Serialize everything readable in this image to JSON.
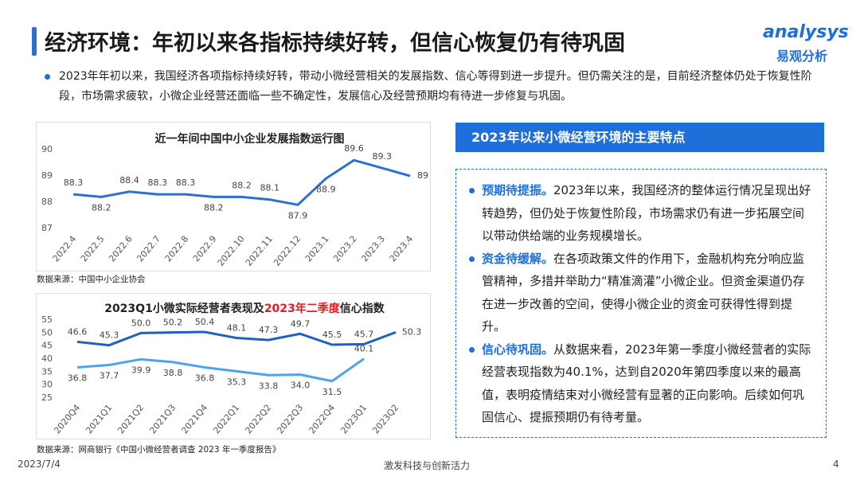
{
  "header": {
    "title": "经济环境：年初以来各指标持续好转，但信心恢复仍有待巩固",
    "logo_en": "analysys",
    "logo_cn": "易观分析"
  },
  "intro": "2023年年初以来，我国经济各项指标持续好转，带动小微经营相关的发展指数、信心等得到进一步提升。但仍需关注的是，目前经济整体仍处于恢复性阶段，市场需求疲软，小微企业经营还面临一些不确定性，发展信心及经营预期均有待进一步修复与巩固。",
  "panel": {
    "title": "2023年以来小微经营环境的主要特点",
    "items": [
      {
        "lead": "预期待提振。",
        "text": "2023年以来，我国经济的整体运行情况呈现出好转趋势，但仍处于恢复性阶段，市场需求仍有进一步拓展空间以带动供给端的业务规模增长。"
      },
      {
        "lead": "资金待缓解。",
        "text": "在各项政策文件的作用下，金融机构充分响应监管精神，多措并举助力“精准滴灌”小微企业。但资金渠道仍存在进一步改善的空间，使得小微企业的资金可获得性得到提升。"
      },
      {
        "lead": "信心待巩固。",
        "text": "从数据来看，2023年第一季度小微经营者的实际经营表现指数为40.1%，达到自2020年第四季度以来的最高值，表明疫情结束对小微经营有显著的正向影响。后续如何巩固信心、提振预期仍有待考量。"
      }
    ]
  },
  "footer": {
    "date": "2023/7/4",
    "slogan": "激发科技与创新活力",
    "page": "4"
  },
  "chart_data": [
    {
      "type": "line",
      "title_parts": [
        "近一年间中国中小企业发展指数运行图"
      ],
      "categories": [
        "2022.4",
        "2022.5",
        "2022.6",
        "2022.7",
        "2022.8",
        "2022.9",
        "2022.10",
        "2022.11",
        "2022.12",
        "2023.1",
        "2023.2",
        "2023.3",
        "2023.4"
      ],
      "series": [
        {
          "color": "#2f6fd1",
          "values": [
            88.3,
            88.2,
            88.4,
            88.3,
            88.3,
            88.2,
            88.2,
            88.1,
            87.9,
            88.9,
            89.6,
            89.3,
            89
          ]
        }
      ],
      "ylim": [
        87,
        90
      ],
      "yticks": [
        87,
        88,
        89,
        90
      ],
      "source": "数据来源：中国中小企业协会"
    },
    {
      "type": "line",
      "title_parts": [
        "2023Q1小微实际经营者表现及",
        "2023年二季度",
        "信心指数"
      ],
      "title_colors": [
        "#222222",
        "#e02020",
        "#222222"
      ],
      "categories": [
        "2020Q4",
        "2021Q1",
        "2021Q2",
        "2021Q3",
        "2021Q4",
        "2022Q1",
        "2022Q2",
        "2022Q3",
        "2022Q4",
        "2023Q1",
        "2023Q2"
      ],
      "series": [
        {
          "color": "#1f5fc4",
          "values": [
            46.6,
            45.3,
            50.0,
            50.2,
            50.4,
            48.1,
            47.3,
            49.7,
            45.5,
            45.7,
            50.3
          ],
          "value_labels": [
            "46.6",
            "45.3",
            "50.0",
            "50.2",
            "50.4",
            "48.1",
            "47.3",
            "49.7",
            "45.5",
            "45.7",
            "50.3"
          ]
        },
        {
          "color": "#4da3ef",
          "values": [
            36.8,
            37.7,
            39.9,
            38.8,
            36.8,
            35.3,
            33.8,
            34.0,
            31.5,
            40.1,
            null
          ],
          "value_labels": [
            "36.8",
            "37.7",
            "39.9",
            "38.8",
            "36.8",
            "35.3",
            "33.8",
            "34.0",
            "31.5",
            "40.1",
            null
          ]
        }
      ],
      "ylim": [
        25,
        55
      ],
      "yticks": [
        25,
        30,
        35,
        40,
        45,
        50,
        55
      ],
      "source": "数据来源：网商银行《中国小微经营者调查 2023 年一季度报告》"
    }
  ]
}
